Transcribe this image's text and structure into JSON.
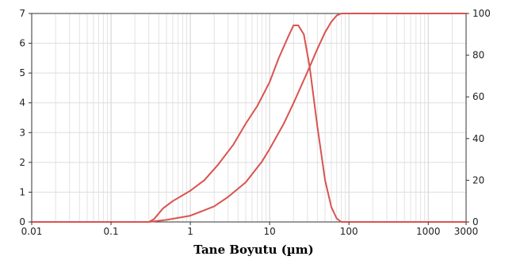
{
  "chart_data": {
    "type": "line",
    "title": "",
    "xlabel": "Tane Boyutu (µm)",
    "ylabel": "",
    "y2label": "",
    "x_scale": "log",
    "xlim": [
      0.01,
      3000
    ],
    "ylim": [
      0,
      7
    ],
    "y2lim": [
      0,
      100
    ],
    "x_tick_labels": [
      "0.01",
      "0.1",
      "1",
      "10",
      "100",
      "1000",
      "3000"
    ],
    "x_ticks": [
      0.01,
      0.1,
      1,
      10,
      100,
      1000,
      3000
    ],
    "y_tick_labels": [
      "0",
      "1",
      "2",
      "3",
      "4",
      "5",
      "6",
      "7"
    ],
    "y2_tick_labels": [
      "0",
      "20",
      "40",
      "60",
      "80",
      "100"
    ],
    "grid": true,
    "color": "#d9534f",
    "series": [
      {
        "axis": "left",
        "x": [
          0.01,
          0.3,
          0.35,
          0.45,
          0.6,
          1.0,
          1.5,
          2.2,
          3.5,
          5,
          7,
          10,
          13,
          17,
          20,
          23,
          27,
          32,
          40,
          50,
          60,
          70,
          80,
          100,
          3000
        ],
        "y": [
          0,
          0,
          0.1,
          0.45,
          0.7,
          1.05,
          1.4,
          1.9,
          2.6,
          3.3,
          3.9,
          4.7,
          5.5,
          6.2,
          6.6,
          6.6,
          6.3,
          5.2,
          3.2,
          1.4,
          0.5,
          0.12,
          0,
          0,
          0
        ]
      },
      {
        "axis": "right",
        "x": [
          0.01,
          0.3,
          0.5,
          1,
          2,
          3,
          5,
          8,
          10,
          15,
          20,
          30,
          40,
          50,
          60,
          70,
          80,
          100,
          3000
        ],
        "y": [
          0,
          0,
          1,
          3,
          7.5,
          12,
          19,
          29,
          35,
          47,
          57,
          72,
          83,
          91,
          96,
          99,
          100,
          100,
          100
        ]
      }
    ]
  }
}
